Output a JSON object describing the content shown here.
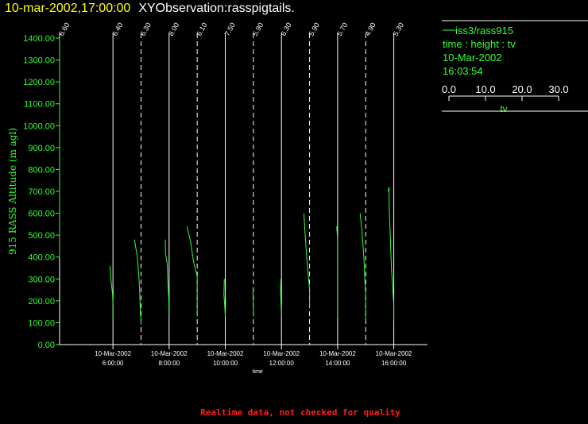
{
  "header": {
    "datetime": "10-mar-2002,17:00:00",
    "observation": "XYObservation:rasspigtails."
  },
  "legend": {
    "series_label": "iss3/rass915",
    "fields": "time : height : tv",
    "date": "10-Mar-2002",
    "time": "16:03:54",
    "scale_ticks": [
      "0.0",
      "10.0",
      "20.0",
      "30.0"
    ],
    "scale_label": "tv"
  },
  "footer": {
    "note": "Realtime data, not checked for quality"
  },
  "colors": {
    "series": "#33ff33",
    "title": "#ffff00",
    "axes": "#ffffff",
    "footer": "#ff2020"
  },
  "chart_data": {
    "type": "line",
    "ylabel": "915 RASS Altitude (m agl)",
    "xlabel": "time",
    "ylim": [
      0,
      1400
    ],
    "y_ticks": [
      0,
      100,
      200,
      300,
      400,
      500,
      600,
      700,
      800,
      900,
      1000,
      1100,
      1200,
      1300,
      1400
    ],
    "y_tick_labels": [
      "0.00",
      "100.00",
      "200.00",
      "300.00",
      "400.00",
      "500.00",
      "600.00",
      "700.00",
      "800.00",
      "900.00",
      "1000.00",
      "1100.00",
      "1200.00",
      "1300.00",
      "1400.00"
    ],
    "xlim_hours": [
      4.1,
      17.2
    ],
    "x_ticks": [
      {
        "hour": 6,
        "date": "10-Mar-2002",
        "time": "6:00:00"
      },
      {
        "hour": 8,
        "date": "10-Mar-2002",
        "time": "8:00:00"
      },
      {
        "hour": 10,
        "date": "10-Mar-2002",
        "time": "10:00:00"
      },
      {
        "hour": 12,
        "date": "10-Mar-2002",
        "time": "12:00:00"
      },
      {
        "hour": 14,
        "date": "10-Mar-2002",
        "time": "14:00:00"
      },
      {
        "hour": 16,
        "date": "10-Mar-2002",
        "time": "16:00:00"
      }
    ],
    "pigtail_scale_tv": 30,
    "profiles": [
      {
        "label": "6.60",
        "base_hour": 4.1,
        "solid": true,
        "points": [
          [
            0,
            400
          ],
          [
            0,
            1200
          ],
          [
            0,
            1400
          ]
        ]
      },
      {
        "label": "6.40",
        "base_hour": 6.0,
        "solid": true,
        "points": [
          [
            -3.0,
            360
          ],
          [
            -2.0,
            290
          ],
          [
            -0.5,
            230
          ],
          [
            0,
            180
          ],
          [
            0,
            110
          ]
        ]
      },
      {
        "label": "6.30",
        "base_hour": 7.0,
        "solid": false,
        "points": [
          [
            -7.0,
            480
          ],
          [
            -4.0,
            400
          ],
          [
            -2.5,
            320
          ],
          [
            -1.5,
            250
          ],
          [
            -0.8,
            150
          ],
          [
            0,
            100
          ]
        ]
      },
      {
        "label": "8.00",
        "base_hour": 8.0,
        "solid": true,
        "points": [
          [
            -4.0,
            480
          ],
          [
            -4.0,
            420
          ],
          [
            -2.0,
            370
          ],
          [
            -1.5,
            300
          ],
          [
            -0.5,
            220
          ],
          [
            0,
            140
          ]
        ]
      },
      {
        "label": "6.10",
        "base_hour": 9.0,
        "solid": false,
        "points": [
          [
            -11.0,
            540
          ],
          [
            -7.0,
            470
          ],
          [
            -4.0,
            380
          ],
          [
            0,
            310
          ],
          [
            0,
            130
          ]
        ]
      },
      {
        "label": "7.50",
        "base_hour": 10.0,
        "solid": true,
        "points": [
          [
            -1.0,
            300
          ],
          [
            -1.5,
            230
          ],
          [
            -0.5,
            170
          ],
          [
            0,
            130
          ]
        ]
      },
      {
        "label": "5.90",
        "base_hour": 11.0,
        "solid": false,
        "points": [
          [
            -0.5,
            240
          ],
          [
            0,
            170
          ],
          [
            0,
            130
          ]
        ]
      },
      {
        "label": "6.30",
        "base_hour": 12.0,
        "solid": true,
        "points": [
          [
            -0.5,
            300
          ],
          [
            -1.0,
            250
          ],
          [
            -0.5,
            190
          ],
          [
            0,
            130
          ]
        ]
      },
      {
        "label": "5.90",
        "base_hour": 13.0,
        "solid": false,
        "points": [
          [
            -6.0,
            600
          ],
          [
            -5.0,
            520
          ],
          [
            -3.0,
            400
          ],
          [
            -1.0,
            300
          ],
          [
            0,
            250
          ],
          [
            0,
            170
          ]
        ]
      },
      {
        "label": "5.70",
        "base_hour": 14.0,
        "solid": true,
        "points": [
          [
            -1.0,
            540
          ],
          [
            0,
            480
          ],
          [
            0,
            330
          ],
          [
            0,
            200
          ],
          [
            0,
            120
          ]
        ]
      },
      {
        "label": "4.90",
        "base_hour": 15.0,
        "solid": false,
        "points": [
          [
            -6.0,
            600
          ],
          [
            -4.0,
            520
          ],
          [
            -2.0,
            400
          ],
          [
            -1.0,
            300
          ],
          [
            0,
            220
          ],
          [
            0,
            110
          ]
        ]
      },
      {
        "label": "5.30",
        "base_hour": 16.0,
        "solid": true,
        "points": [
          [
            -6.0,
            700
          ],
          [
            -5.0,
            720
          ],
          [
            -5.0,
            640
          ],
          [
            -4.0,
            520
          ],
          [
            -2.5,
            350
          ],
          [
            0,
            180
          ],
          [
            0,
            110
          ]
        ]
      }
    ]
  }
}
